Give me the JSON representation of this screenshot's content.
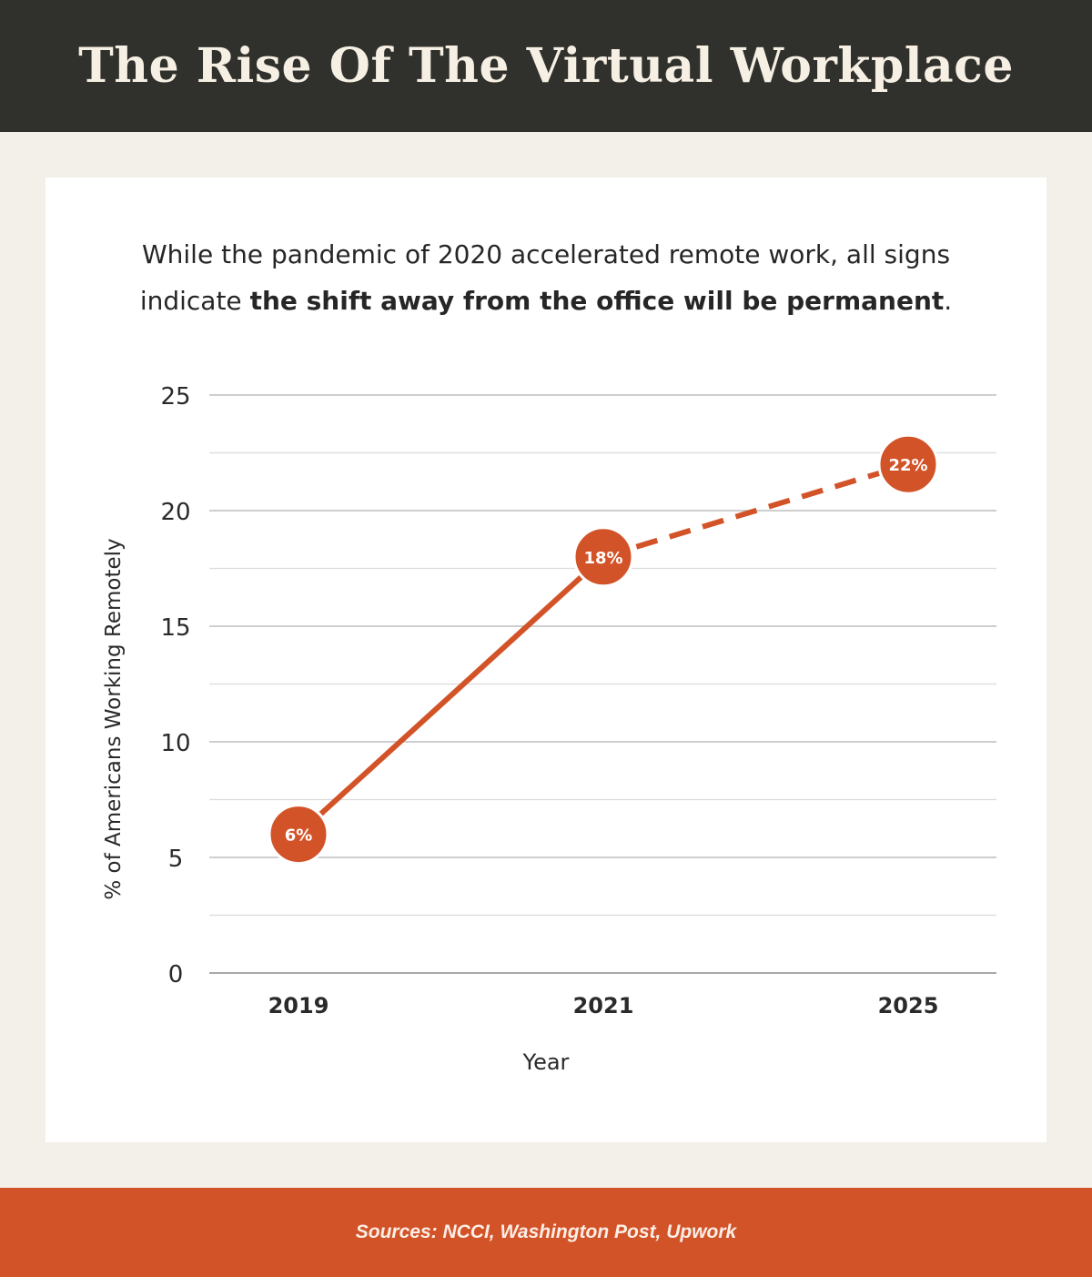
{
  "header": {
    "title": "The Rise Of The Virtual Workplace"
  },
  "subtitle": {
    "line1": "While the pandemic of 2020 accelerated remote work, all signs",
    "line2_prefix": "indicate ",
    "line2_bold": "the shift away from the office will be permanent",
    "line2_suffix": "."
  },
  "chart_data": {
    "type": "line",
    "x": [
      "2019",
      "2021",
      "2025"
    ],
    "series": [
      {
        "values": [
          6,
          18,
          22
        ],
        "point_labels": [
          "6%",
          "18%",
          "22%"
        ],
        "projected_from_index": 1
      }
    ],
    "xlabel": "Year",
    "ylabel": "% of Americans Working Remotely",
    "ylim": [
      0,
      25
    ],
    "yticks": [
      "0",
      "5",
      "10",
      "15",
      "20",
      "25"
    ],
    "grid": true,
    "colors": {
      "line": "#d35328",
      "grid": "#bdbdbd",
      "minor_grid": "#dcdcdc"
    }
  },
  "footer": {
    "sources": "Sources: NCCI, Washington Post, Upwork"
  }
}
